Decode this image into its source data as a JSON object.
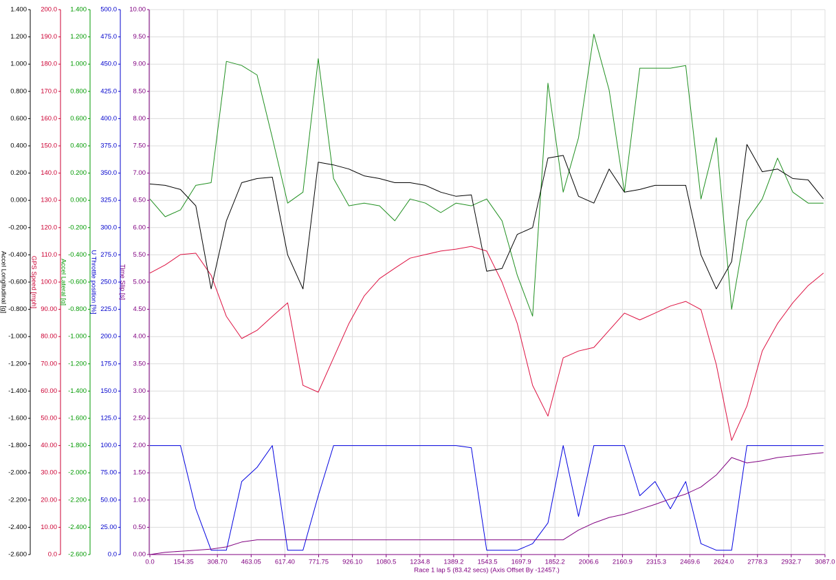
{
  "chart_data": {
    "type": "line",
    "x_label": "Race 1 lap 5 (83.42 secs)  (Axis Offset By -12457.)",
    "xlim": [
      0,
      3087
    ],
    "xticks": [
      {
        "value": 0,
        "label": "0.0"
      },
      154.35,
      {
        "value": 308.7,
        "label": "308.70"
      },
      463.05,
      {
        "value": 617.4,
        "label": "617.40"
      },
      771.75,
      {
        "value": 926.1,
        "label": "926.10"
      },
      1080.5,
      1234.8,
      1389.2,
      1543.5,
      1697.9,
      1852.2,
      2006.6,
      2160.9,
      2315.3,
      2469.6,
      {
        "value": 2624,
        "label": "2624.0"
      },
      2778.3,
      2932.7,
      {
        "value": 3087,
        "label": "3087.0"
      }
    ],
    "grid": true,
    "x": [
      0,
      70,
      140,
      210,
      280,
      350,
      420,
      490,
      560,
      630,
      700,
      770,
      840,
      910,
      980,
      1050,
      1120,
      1190,
      1260,
      1330,
      1400,
      1470,
      1540,
      1610,
      1680,
      1750,
      1820,
      1890,
      1960,
      2030,
      2100,
      2170,
      2240,
      2310,
      2380,
      2450,
      2520,
      2590,
      2660,
      2730,
      2800,
      2870,
      2940,
      3010,
      3080
    ],
    "axes": [
      {
        "label": "Accel Longitudinal [g]",
        "color": "#000000",
        "ylim": [
          -2.6,
          1.4
        ],
        "yticks": [
          {
            "value": 1.4,
            "label": "1.400"
          },
          {
            "value": 1.2,
            "label": "1.200"
          },
          {
            "value": 1,
            "label": "1.000"
          },
          {
            "value": 0.8,
            "label": "0.800"
          },
          {
            "value": 0.6,
            "label": "0.600"
          },
          {
            "value": 0.4,
            "label": "0.400"
          },
          {
            "value": 0.2,
            "label": "0.200"
          },
          {
            "value": 0,
            "label": "0.000"
          },
          {
            "value": -0.2,
            "label": "-0.200"
          },
          {
            "value": -0.4,
            "label": "-0.400"
          },
          {
            "value": -0.6,
            "label": "-0.600"
          },
          {
            "value": -0.8,
            "label": "-0.800"
          },
          {
            "value": -1,
            "label": "-1.000"
          },
          {
            "value": -1.2,
            "label": "-1.200"
          },
          {
            "value": -1.4,
            "label": "-1.400"
          },
          {
            "value": -1.6,
            "label": "-1.600"
          },
          {
            "value": -1.8,
            "label": "-1.800"
          },
          {
            "value": -2,
            "label": "-2.000"
          },
          {
            "value": -2.2,
            "label": "-2.200"
          },
          {
            "value": -2.4,
            "label": "-2.400"
          },
          {
            "value": -2.6,
            "label": "-2.600"
          }
        ]
      },
      {
        "label": "GPS Speed [mph]",
        "color": "#cc0033",
        "ylim": [
          0,
          200
        ],
        "yticks": [
          {
            "value": 200,
            "label": "200.0"
          },
          {
            "value": 190,
            "label": "190.0"
          },
          {
            "value": 180,
            "label": "180.0"
          },
          {
            "value": 170,
            "label": "170.0"
          },
          {
            "value": 160,
            "label": "160.0"
          },
          {
            "value": 150,
            "label": "150.0"
          },
          {
            "value": 140,
            "label": "140.0"
          },
          {
            "value": 130,
            "label": "130.0"
          },
          {
            "value": 120,
            "label": "120.0"
          },
          {
            "value": 110,
            "label": "110.0"
          },
          {
            "value": 100,
            "label": "100.0"
          },
          {
            "value": 90,
            "label": "90.00"
          },
          {
            "value": 80,
            "label": "80.00"
          },
          {
            "value": 70,
            "label": "70.00"
          },
          {
            "value": 60,
            "label": "60.00"
          },
          {
            "value": 50,
            "label": "50.00"
          },
          {
            "value": 40,
            "label": "40.00"
          },
          {
            "value": 30,
            "label": "30.00"
          },
          {
            "value": 20,
            "label": "20.00"
          },
          {
            "value": 10,
            "label": "10.00"
          },
          {
            "value": 0,
            "label": "0.0"
          }
        ]
      },
      {
        "label": "Accel Lateral [g]",
        "color": "#009900",
        "ylim": [
          -2.6,
          1.4
        ],
        "yticks": [
          {
            "value": 1.4,
            "label": "1.400"
          },
          {
            "value": 1.2,
            "label": "1.200"
          },
          {
            "value": 1,
            "label": "1.000"
          },
          {
            "value": 0.8,
            "label": "0.800"
          },
          {
            "value": 0.6,
            "label": "0.600"
          },
          {
            "value": 0.4,
            "label": "0.400"
          },
          {
            "value": 0.2,
            "label": "0.200"
          },
          {
            "value": 0,
            "label": "0.000"
          },
          {
            "value": -0.2,
            "label": "-0.200"
          },
          {
            "value": -0.4,
            "label": "-0.400"
          },
          {
            "value": -0.6,
            "label": "-0.600"
          },
          {
            "value": -0.8,
            "label": "-0.800"
          },
          {
            "value": -1,
            "label": "-1.000"
          },
          {
            "value": -1.2,
            "label": "-1.200"
          },
          {
            "value": -1.4,
            "label": "-1.400"
          },
          {
            "value": -1.6,
            "label": "-1.600"
          },
          {
            "value": -1.8,
            "label": "-1.800"
          },
          {
            "value": -2,
            "label": "-2.000"
          },
          {
            "value": -2.2,
            "label": "-2.200"
          },
          {
            "value": -2.4,
            "label": "-2.400"
          },
          {
            "value": -2.6,
            "label": "-2.600"
          }
        ]
      },
      {
        "label": "U Throttle position [%]",
        "color": "#0000cc",
        "ylim": [
          0,
          500
        ],
        "yticks": [
          {
            "value": 500,
            "label": "500.0"
          },
          {
            "value": 475,
            "label": "475.0"
          },
          {
            "value": 450,
            "label": "450.0"
          },
          {
            "value": 425,
            "label": "425.0"
          },
          {
            "value": 400,
            "label": "400.0"
          },
          {
            "value": 375,
            "label": "375.0"
          },
          {
            "value": 350,
            "label": "350.0"
          },
          {
            "value": 325,
            "label": "325.0"
          },
          {
            "value": 300,
            "label": "300.0"
          },
          {
            "value": 275,
            "label": "275.0"
          },
          {
            "value": 250,
            "label": "250.0"
          },
          {
            "value": 225,
            "label": "225.0"
          },
          {
            "value": 200,
            "label": "200.0"
          },
          {
            "value": 175,
            "label": "175.0"
          },
          {
            "value": 150,
            "label": "150.0"
          },
          {
            "value": 125,
            "label": "125.0"
          },
          {
            "value": 100,
            "label": "100.0"
          },
          {
            "value": 75,
            "label": "75.00"
          },
          {
            "value": 50,
            "label": "50.00"
          },
          {
            "value": 25,
            "label": "25.00"
          },
          {
            "value": 0,
            "label": "0.0"
          }
        ]
      },
      {
        "label": "Time Slip [s]",
        "color": "#800080",
        "ylim": [
          0,
          10
        ],
        "yticks": [
          {
            "value": 10,
            "label": "10.00"
          },
          {
            "value": 9.5,
            "label": "9.50"
          },
          {
            "value": 9,
            "label": "9.00"
          },
          {
            "value": 8.5,
            "label": "8.50"
          },
          {
            "value": 8,
            "label": "8.00"
          },
          {
            "value": 7.5,
            "label": "7.50"
          },
          {
            "value": 7,
            "label": "7.00"
          },
          {
            "value": 6.5,
            "label": "6.50"
          },
          {
            "value": 6,
            "label": "6.00"
          },
          {
            "value": 5.5,
            "label": "5.50"
          },
          {
            "value": 5,
            "label": "5.00"
          },
          {
            "value": 4.5,
            "label": "4.50"
          },
          {
            "value": 4,
            "label": "4.00"
          },
          {
            "value": 3.5,
            "label": "3.50"
          },
          {
            "value": 3,
            "label": "3.00"
          },
          {
            "value": 2.5,
            "label": "2.50"
          },
          {
            "value": 2,
            "label": "2.00"
          },
          {
            "value": 1.5,
            "label": "1.50"
          },
          {
            "value": 1,
            "label": "1.00"
          },
          {
            "value": 0.5,
            "label": "0.50"
          },
          {
            "value": 0,
            "label": "0.00"
          }
        ]
      }
    ],
    "series": [
      {
        "axis": 1,
        "color": "#dd1040",
        "values": [
          103.3,
          106.3,
          110.1,
          110.6,
          102.5,
          87.4,
          79.3,
          82.3,
          87.4,
          92.4,
          62.1,
          59.6,
          72.2,
          84.8,
          94.9,
          101.3,
          105.1,
          108.8,
          110.1,
          111.4,
          112.1,
          113.1,
          111.4,
          100.0,
          84.8,
          62.1,
          50.8,
          72.2,
          74.7,
          76.0,
          82.3,
          88.6,
          86.1,
          88.6,
          91.2,
          92.9,
          89.9,
          69.7,
          41.9,
          54.5,
          74.7,
          84.8,
          92.4,
          98.7,
          103.3
        ]
      },
      {
        "axis": 2,
        "color": "#1f8f1f",
        "values": [
          0.01,
          -0.12,
          -0.07,
          0.11,
          0.13,
          1.02,
          0.99,
          0.92,
          0.46,
          -0.02,
          0.06,
          1.04,
          0.16,
          -0.04,
          -0.02,
          -0.04,
          -0.15,
          0.01,
          -0.02,
          -0.09,
          -0.02,
          -0.04,
          0.01,
          -0.15,
          -0.55,
          -0.85,
          0.86,
          0.06,
          0.46,
          1.22,
          0.81,
          0.06,
          0.97,
          0.97,
          0.97,
          0.99,
          0.01,
          0.46,
          -0.8,
          -0.15,
          0.01,
          0.31,
          0.06,
          -0.02,
          -0.02
        ]
      },
      {
        "axis": 0,
        "color": "#000000",
        "values": [
          0.12,
          0.11,
          0.08,
          -0.04,
          -0.65,
          -0.15,
          0.13,
          0.16,
          0.17,
          -0.4,
          -0.65,
          0.28,
          0.26,
          0.23,
          0.18,
          0.16,
          0.13,
          0.13,
          0.11,
          0.06,
          0.03,
          0.04,
          -0.52,
          -0.5,
          -0.25,
          -0.2,
          0.31,
          0.33,
          0.03,
          -0.02,
          0.23,
          0.06,
          0.08,
          0.11,
          0.11,
          0.11,
          -0.4,
          -0.65,
          -0.45,
          0.41,
          0.21,
          0.23,
          0.16,
          0.15,
          0.01
        ]
      },
      {
        "axis": 3,
        "color": "#0000e0",
        "values": [
          100,
          100,
          100,
          42,
          4,
          4,
          67,
          80,
          100,
          4,
          4,
          54,
          100,
          100,
          100,
          100,
          100,
          100,
          100,
          100,
          100,
          98,
          4,
          4,
          4,
          10,
          29,
          100,
          35,
          100,
          100,
          100,
          54,
          67,
          42,
          67,
          10,
          4,
          4,
          100,
          100,
          100,
          100,
          100,
          100
        ]
      },
      {
        "axis": 4,
        "color": "#800080",
        "values": [
          0,
          0.04,
          0.06,
          0.08,
          0.1,
          0.14,
          0.23,
          0.27,
          0.27,
          0.27,
          0.27,
          0.27,
          0.27,
          0.27,
          0.27,
          0.27,
          0.27,
          0.27,
          0.27,
          0.27,
          0.27,
          0.27,
          0.27,
          0.27,
          0.27,
          0.27,
          0.27,
          0.27,
          0.45,
          0.58,
          0.68,
          0.74,
          0.83,
          0.92,
          1.02,
          1.11,
          1.24,
          1.46,
          1.78,
          1.68,
          1.72,
          1.78,
          1.81,
          1.84,
          1.87
        ]
      }
    ]
  }
}
